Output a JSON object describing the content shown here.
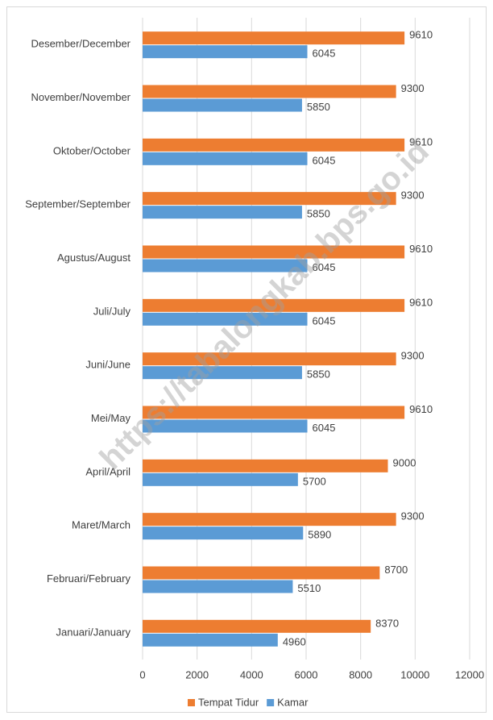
{
  "chart_data": {
    "type": "hbar",
    "annotation": "https://tabalongkab.bps.go.id",
    "categories": [
      "Januari/January",
      "Februari/February",
      "Maret/March",
      "April/April",
      "Mei/May",
      "Juni/June",
      "Juli/July",
      "Agustus/August",
      "September/September",
      "Oktober/October",
      "November/November",
      "Desember/December"
    ],
    "series": [
      {
        "name": "Tempat Tidur",
        "color": "#ed7d31",
        "values": [
          8370,
          8700,
          9300,
          9000,
          9610,
          9300,
          9610,
          9610,
          9300,
          9610,
          9300,
          9610
        ]
      },
      {
        "name": "Kamar",
        "color": "#5b9bd5",
        "values": [
          4960,
          5510,
          5890,
          5700,
          6045,
          5850,
          6045,
          6045,
          5850,
          6045,
          5850,
          6045
        ]
      }
    ],
    "xlim": [
      0,
      12000
    ],
    "xticks": [
      0,
      2000,
      4000,
      6000,
      8000,
      10000,
      12000
    ],
    "grid": true,
    "legend": "bottom"
  }
}
